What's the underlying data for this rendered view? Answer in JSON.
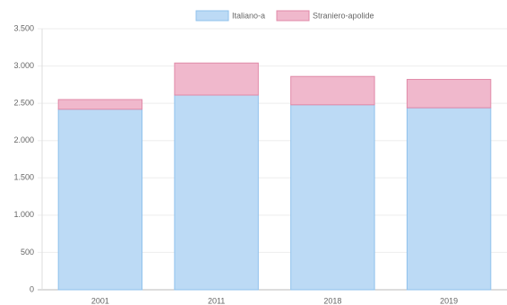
{
  "chart_data": {
    "type": "bar",
    "stacked": true,
    "categories": [
      "2001",
      "2011",
      "2018",
      "2019"
    ],
    "series": [
      {
        "name": "Italiano-a",
        "color": "#bcdaf5",
        "border": "#8fc1ec",
        "values": [
          2420,
          2610,
          2480,
          2440
        ]
      },
      {
        "name": "Straniero-apolide",
        "color": "#f0b8cc",
        "border": "#e08aa8",
        "values": [
          130,
          430,
          380,
          380
        ]
      }
    ],
    "ylim": [
      0,
      3500
    ],
    "yticks": [
      0,
      500,
      {
        "value": 1000,
        "label": "1.000"
      },
      {
        "value": 1500,
        "label": "1.500"
      },
      {
        "value": 2000,
        "label": "2.000"
      },
      {
        "value": 2500,
        "label": "2.500"
      },
      {
        "value": 3000,
        "label": "3.000"
      },
      {
        "value": 3500,
        "label": "3.500"
      }
    ],
    "grid": true,
    "legend": "top"
  }
}
